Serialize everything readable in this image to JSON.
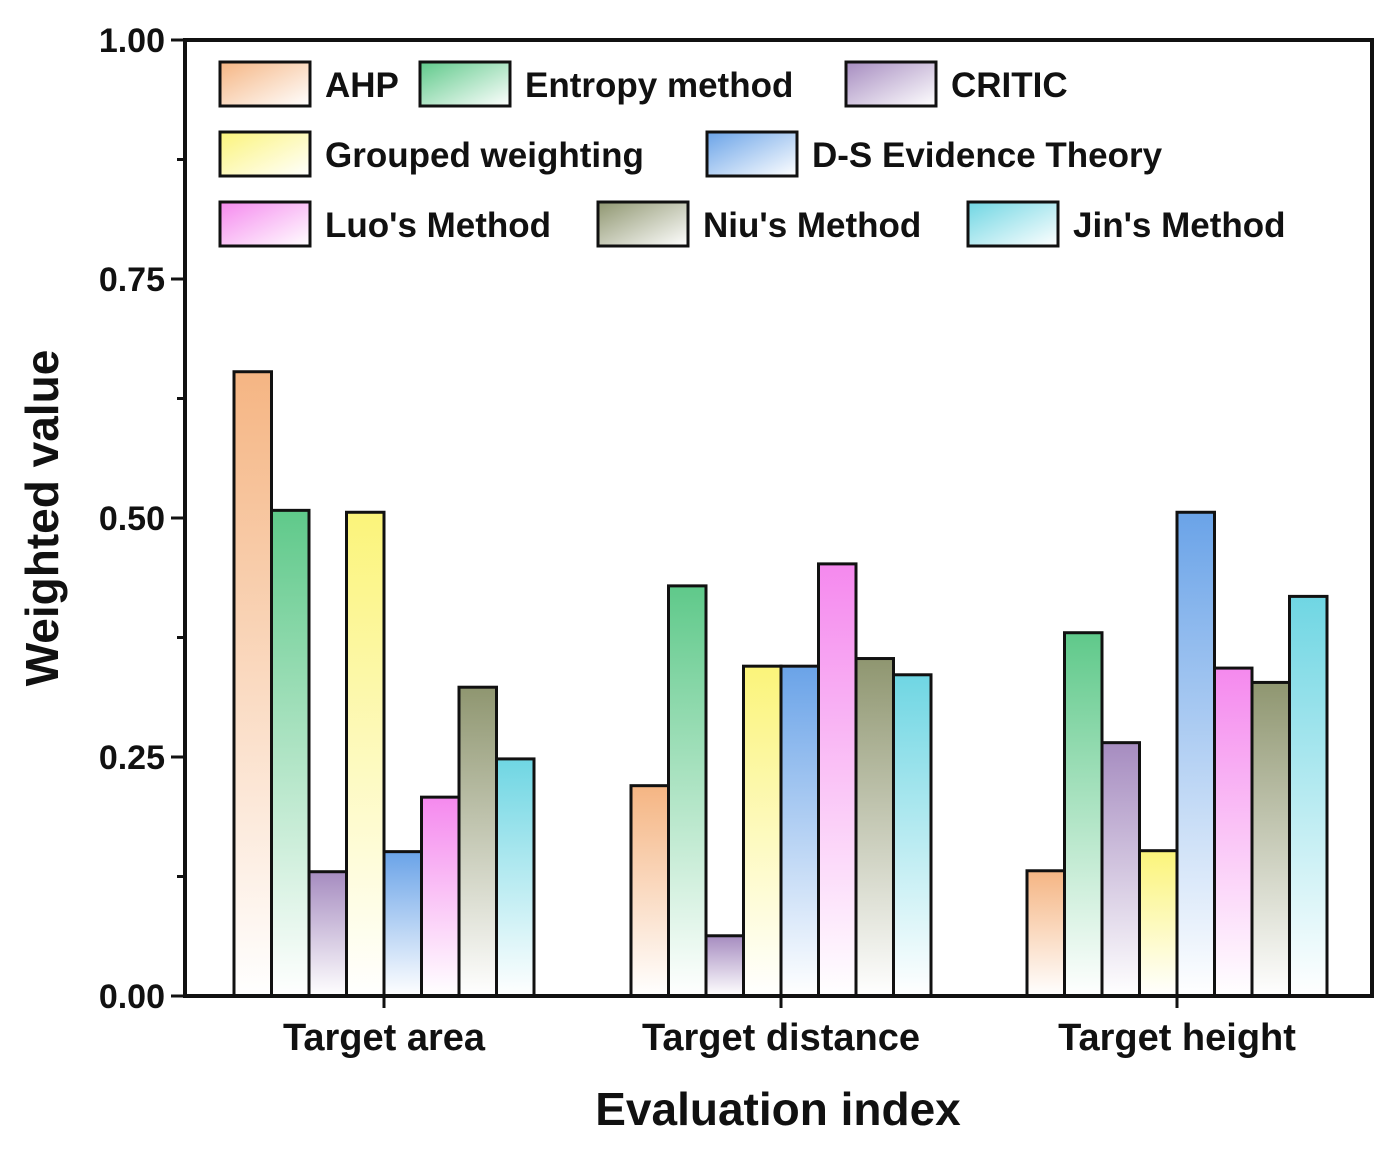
{
  "chart_data": {
    "type": "bar",
    "xlabel": "Evaluation index",
    "ylabel": "Weighted value",
    "ylim": [
      0,
      1.0
    ],
    "yticks": [
      "0.00",
      "0.25",
      "0.50",
      "0.75",
      "1.00"
    ],
    "categories": [
      "Target area",
      "Target distance",
      "Target height"
    ],
    "legend_position": "top",
    "series": [
      {
        "name": "AHP",
        "color": "#f5b583",
        "values": [
          0.653,
          0.22,
          0.131
        ]
      },
      {
        "name": "Entropy method",
        "color": "#5fc98a",
        "values": [
          0.508,
          0.429,
          0.38
        ]
      },
      {
        "name": "CRITIC",
        "color": "#a68cc0",
        "values": [
          0.13,
          0.063,
          0.265
        ]
      },
      {
        "name": "Grouped weighting",
        "color": "#fbf47a",
        "values": [
          0.506,
          0.345,
          0.152
        ]
      },
      {
        "name": "D-S Evidence Theory",
        "color": "#6aa3e8",
        "values": [
          0.151,
          0.345,
          0.506
        ]
      },
      {
        "name": "Luo's Method",
        "color": "#f589ee",
        "values": [
          0.208,
          0.452,
          0.343
        ]
      },
      {
        "name": "Niu's Method",
        "color": "#8f9670",
        "values": [
          0.323,
          0.353,
          0.328
        ]
      },
      {
        "name": "Jin's Method",
        "color": "#6fd6e3",
        "values": [
          0.248,
          0.336,
          0.418
        ]
      }
    ]
  }
}
